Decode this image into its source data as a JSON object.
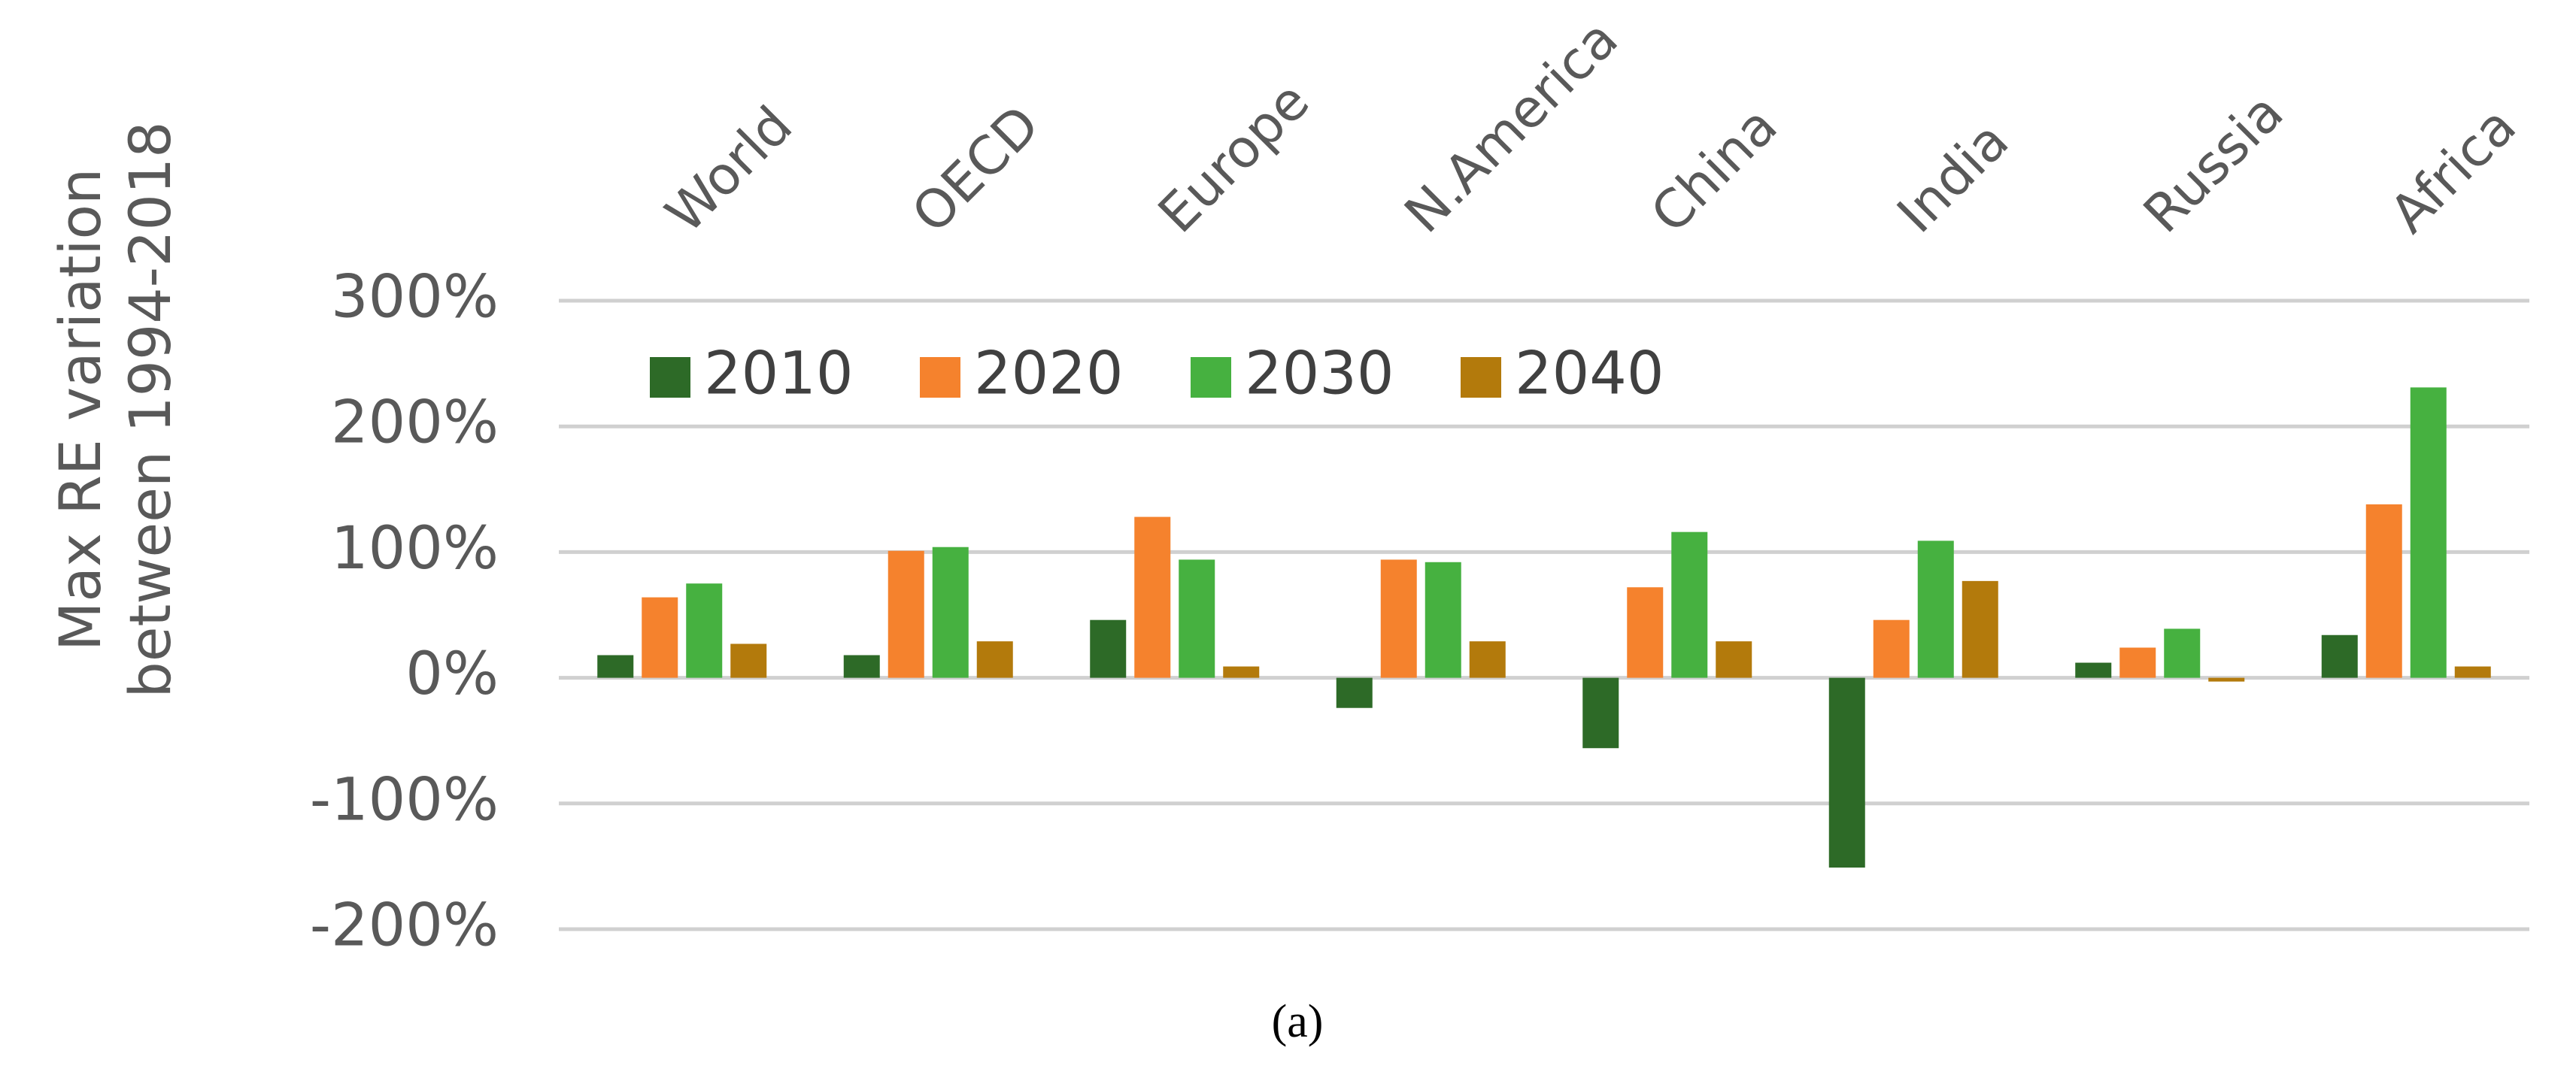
{
  "chart_data": {
    "type": "bar",
    "ylabel": [
      "Max RE variation",
      "between 1994-2018"
    ],
    "caption": "(a)",
    "categories": [
      "World",
      "OECD",
      "Europe",
      "N.America",
      "China",
      "India",
      "Russia",
      "Africa"
    ],
    "series": [
      {
        "name": "2010",
        "color": "#2d6a27",
        "values": [
          18,
          18,
          46,
          -24,
          -56,
          -151,
          12,
          34
        ]
      },
      {
        "name": "2020",
        "color": "#f5822d",
        "values": [
          64,
          101,
          128,
          94,
          72,
          46,
          24,
          138
        ]
      },
      {
        "name": "2030",
        "color": "#46b140",
        "values": [
          75,
          104,
          94,
          92,
          116,
          109,
          39,
          231
        ]
      },
      {
        "name": "2040",
        "color": "#b37a0c",
        "values": [
          27,
          29,
          9,
          29,
          29,
          77,
          -3,
          9
        ]
      }
    ],
    "ylim": [
      -200,
      300
    ],
    "yticks": [
      {
        "value": -200,
        "label": "-200%"
      },
      {
        "value": -100,
        "label": "-100%"
      },
      {
        "value": 0,
        "label": "0%"
      },
      {
        "value": 100,
        "label": "100%"
      },
      {
        "value": 200,
        "label": "200%"
      },
      {
        "value": 300,
        "label": "300%"
      }
    ],
    "grid": true,
    "legend": "top-left"
  }
}
